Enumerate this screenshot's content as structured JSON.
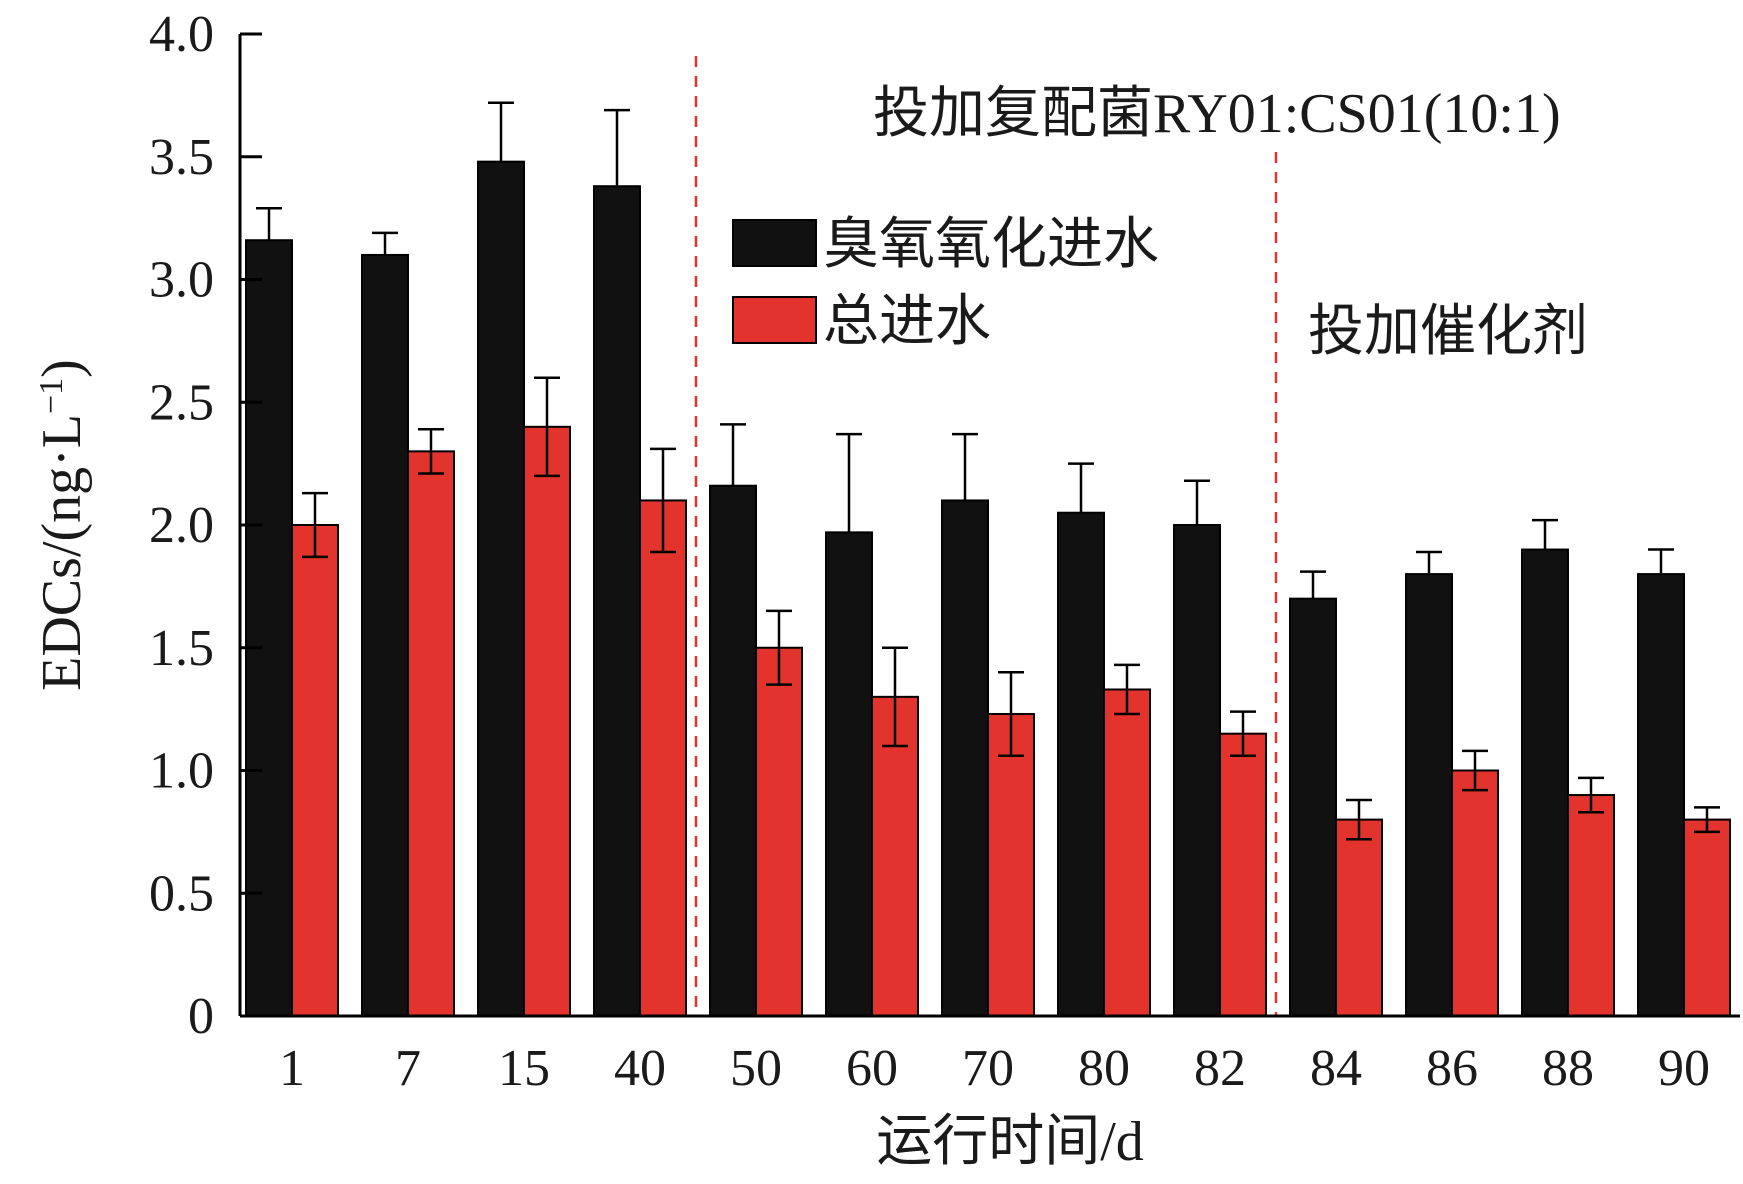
{
  "chart_data": {
    "type": "bar",
    "xlabel": "运行时间/d",
    "ylabel_main": "EDCs/(ng·L",
    "ylabel_sup": "−1",
    "ylabel_close": ")",
    "ylim": [
      0,
      4.0
    ],
    "yticks": [
      {
        "value": 0,
        "label": "0"
      },
      {
        "value": 0.5,
        "label": "0.5"
      },
      {
        "value": 1.0,
        "label": "1.0"
      },
      {
        "value": 1.5,
        "label": "1.5"
      },
      {
        "value": 2.0,
        "label": "2.0"
      },
      {
        "value": 2.5,
        "label": "2.5"
      },
      {
        "value": 3.0,
        "label": "3.0"
      },
      {
        "value": 3.5,
        "label": "3.5"
      },
      {
        "value": 4.0,
        "label": "4.0"
      }
    ],
    "categories": [
      "1",
      "7",
      "15",
      "40",
      "50",
      "60",
      "70",
      "80",
      "82",
      "84",
      "86",
      "88",
      "90"
    ],
    "series": [
      {
        "name": "臭氧氧化进水",
        "color": "#111111",
        "values": [
          3.16,
          3.1,
          3.48,
          3.38,
          2.16,
          1.97,
          2.1,
          2.05,
          2.0,
          1.7,
          1.8,
          1.9,
          1.8
        ],
        "errors": [
          0.13,
          0.09,
          0.24,
          0.31,
          0.25,
          0.4,
          0.27,
          0.2,
          0.18,
          0.11,
          0.09,
          0.12,
          0.1
        ]
      },
      {
        "name": "总进水",
        "color": "#e2342d",
        "values": [
          2.0,
          2.3,
          2.4,
          2.1,
          1.5,
          1.3,
          1.23,
          1.33,
          1.15,
          0.8,
          1.0,
          0.9,
          0.8
        ],
        "errors": [
          0.13,
          0.09,
          0.2,
          0.21,
          0.15,
          0.2,
          0.17,
          0.1,
          0.09,
          0.08,
          0.08,
          0.07,
          0.05
        ]
      }
    ],
    "phase_dividers_after_index": [
      3,
      8
    ],
    "annotations": [
      {
        "text": "投加复配菌RY01:CS01(10:1)"
      },
      {
        "text": "投加催化剂"
      }
    ],
    "legend_position": "top-center"
  }
}
